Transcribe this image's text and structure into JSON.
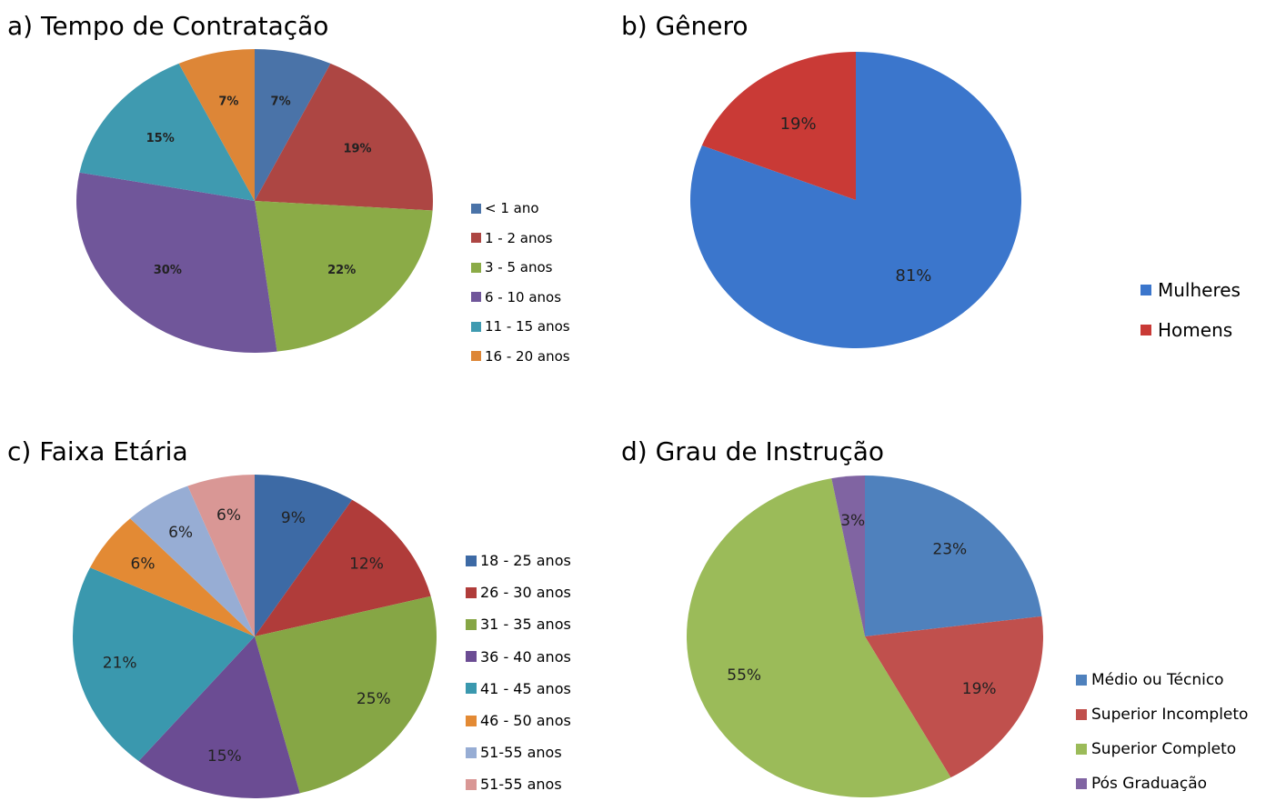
{
  "chart_data": [
    {
      "type": "pie",
      "title": "a) Tempo de Contratação",
      "legend_position": "right",
      "categories": [
        "< 1 ano",
        "1 - 2 anos",
        "3 - 5 anos",
        "6 - 10 anos",
        "11 - 15 anos",
        "16 - 20 anos"
      ],
      "values": [
        7,
        19,
        22,
        30,
        15,
        7
      ],
      "labels": [
        "7%",
        "19%",
        "22%",
        "30%",
        "15%",
        "7%"
      ],
      "colors": [
        "#4a73a8",
        "#ad4643",
        "#8bab47",
        "#70569a",
        "#3f9ab0",
        "#dd8637"
      ]
    },
    {
      "type": "pie",
      "title": "b) Gênero",
      "legend_position": "right",
      "categories": [
        "Mulheres",
        "Homens"
      ],
      "values": [
        81,
        19
      ],
      "labels": [
        "81%",
        "19%"
      ],
      "colors": [
        "#3b76cc",
        "#c93a36"
      ]
    },
    {
      "type": "pie",
      "title": "c) Faixa Etária",
      "legend_position": "right",
      "categories": [
        "18 - 25 anos",
        "26 - 30 anos",
        "31 - 35 anos",
        "36 - 40 anos",
        "41 - 45 anos",
        "46 - 50 anos",
        "51-55 anos",
        "51-55 anos"
      ],
      "values": [
        9,
        12,
        25,
        15,
        21,
        6,
        6,
        6
      ],
      "labels": [
        "9%",
        "12%",
        "25%",
        "15%",
        "21%",
        "6%",
        "6%",
        "6%"
      ],
      "colors": [
        "#3d6aa5",
        "#b03c3a",
        "#86a645",
        "#6b4c93",
        "#3a98ae",
        "#e38a34",
        "#97add4",
        "#d99795"
      ]
    },
    {
      "type": "pie",
      "title": "d) Grau de Instrução",
      "legend_position": "right",
      "categories": [
        "Médio ou Técnico",
        "Superior Incompleto",
        "Superior Completo",
        "Pós Graduação"
      ],
      "values": [
        23,
        19,
        55,
        3
      ],
      "labels": [
        "23%",
        "19%",
        "55%",
        "3%"
      ],
      "colors": [
        "#4f81bd",
        "#c0504d",
        "#9bbb59",
        "#8064a2"
      ]
    }
  ]
}
